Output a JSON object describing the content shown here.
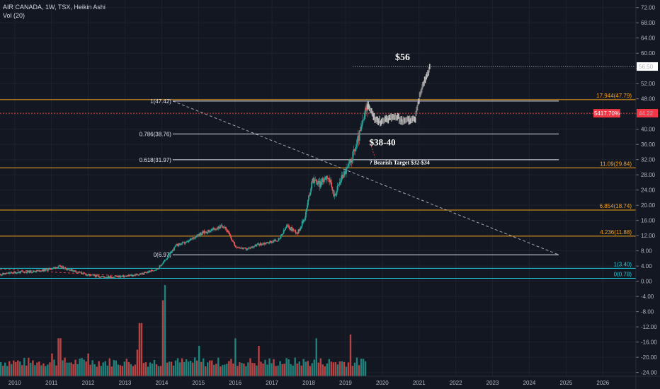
{
  "legend": {
    "symbol_line": "AIR CANADA, 1W, TSX, Heikin Ashi",
    "volume_line": "Vol (20)"
  },
  "colors": {
    "background": "#131722",
    "bull": "#26a69a",
    "bear": "#ef5350",
    "fib": "#f7a21b",
    "white": "#e0e3eb",
    "cyan": "#22c9d6",
    "red_dotted": "#e23d3d",
    "projection": "#9e9e9e",
    "price_tag_bg": "#f23645"
  },
  "chart_data": {
    "type": "line",
    "title": "AIR CANADA, 1W, TSX, Heikin Ashi",
    "xlabel": "",
    "ylabel": "",
    "x_ticks": [
      "2010",
      "2011",
      "2012",
      "2013",
      "2014",
      "2015",
      "2016",
      "2017",
      "2018",
      "2019",
      "2020",
      "2021",
      "2022",
      "2023",
      "2024",
      "2025",
      "2026"
    ],
    "y_ticks": [
      "72.00",
      "68.00",
      "64.00",
      "60.00",
      "56.00",
      "52.00",
      "48.00",
      "44.00",
      "40.00",
      "36.00",
      "32.00",
      "28.00",
      "24.00",
      "20.00",
      "16.00",
      "12.00",
      "8.00",
      "4.00",
      "0.00",
      "-4.00",
      "-8.00",
      "-12.00",
      "-16.00",
      "-20.00",
      "-24.00"
    ],
    "ylim": [
      -25,
      74
    ],
    "xlim": [
      2009.6,
      2026.9
    ],
    "price_series": {
      "name": "Heikin Ashi",
      "x": [
        2009.6,
        2010.0,
        2010.5,
        2010.9,
        2011.2,
        2011.6,
        2012.0,
        2012.5,
        2013.0,
        2013.5,
        2013.9,
        2014.1,
        2014.4,
        2014.7,
        2015.0,
        2015.4,
        2015.7,
        2016.0,
        2016.3,
        2016.6,
        2016.9,
        2017.2,
        2017.4,
        2017.7,
        2017.9,
        2018.1,
        2018.3,
        2018.5,
        2018.7,
        2018.9,
        2019.1,
        2019.3,
        2019.45,
        2019.6
      ],
      "y": [
        1.8,
        2.3,
        2.6,
        3.1,
        3.9,
        2.8,
        1.6,
        1.1,
        1.3,
        2.0,
        3.4,
        5.6,
        9.5,
        10.3,
        12.4,
        13.6,
        14.7,
        9.2,
        8.4,
        9.6,
        10.2,
        11.0,
        14.5,
        12.8,
        17.0,
        27.0,
        25.5,
        28.0,
        22.5,
        27.5,
        30.5,
        36.0,
        41.0,
        46.5
      ]
    },
    "projection": {
      "name": "",
      "x": [
        2019.6,
        2019.8,
        2020.0,
        2020.3,
        2020.6,
        2020.9,
        2021.0,
        2021.1,
        2021.2,
        2021.3
      ],
      "y": [
        46.5,
        42.5,
        42.0,
        43.5,
        42.0,
        43.0,
        48.0,
        52.0,
        54.0,
        56.5
      ]
    },
    "volume": {
      "name": "Vol (20)",
      "x_start": 2009.6,
      "x_end": 2019.55,
      "step": 0.058,
      "y_min": -25,
      "peaks": [
        [
          2011.0,
          -19
        ],
        [
          2011.2,
          -15
        ],
        [
          2012.0,
          -19
        ],
        [
          2013.3,
          -18
        ],
        [
          2013.4,
          -11
        ],
        [
          2014.0,
          -5
        ],
        [
          2014.05,
          -1
        ],
        [
          2015.0,
          -17
        ],
        [
          2016.0,
          -15
        ],
        [
          2016.6,
          -17
        ],
        [
          2018.2,
          -15
        ],
        [
          2019.1,
          -14
        ]
      ]
    },
    "levels": [
      {
        "label": "17.944(47.79)",
        "y": 47.79,
        "color": "fib",
        "side": "right",
        "x_from": 2009.6
      },
      {
        "label": "5417.70%",
        "y": 44.2,
        "color": "red_dotted",
        "side": "tag",
        "x_from": 2009.6
      },
      {
        "label": "0.786(38.76)",
        "y": 38.76,
        "color": "white",
        "side": "left",
        "x_from": 2014.3,
        "x_to": 2024.8
      },
      {
        "label": "0.618(31.97)",
        "y": 31.97,
        "color": "white",
        "side": "left",
        "x_from": 2014.3,
        "x_to": 2024.8
      },
      {
        "label": "11.09(29.84)",
        "y": 29.84,
        "color": "fib",
        "side": "right",
        "x_from": 2009.6
      },
      {
        "label": "6.854(18.74)",
        "y": 18.74,
        "color": "fib",
        "side": "right",
        "x_from": 2009.6
      },
      {
        "label": "4.236(11.88)",
        "y": 11.88,
        "color": "fib",
        "side": "right",
        "x_from": 2009.6
      },
      {
        "label": "0(6.97)",
        "y": 6.97,
        "color": "white",
        "side": "left",
        "x_from": 2014.3,
        "x_to": 2024.8
      },
      {
        "label": "1(3.40)",
        "y": 3.4,
        "color": "cyan",
        "side": "right",
        "x_from": 2009.6
      },
      {
        "label": "0(0.78)",
        "y": 0.78,
        "color": "cyan",
        "side": "right",
        "x_from": 2009.6
      }
    ],
    "top_level": {
      "label": "1(47.42)",
      "y": 47.42,
      "x_from": 2014.3
    },
    "target_line": {
      "label": "56.50",
      "y": 56.5,
      "x_from": 2019.2
    },
    "right_tags": [
      {
        "text": "56.50",
        "y": 56.5,
        "style": "white"
      },
      {
        "text": "44.22",
        "y": 44.22,
        "style": "red"
      }
    ],
    "trendline": {
      "x1": 2014.3,
      "y1": 47.42,
      "x2": 2024.8,
      "y2": 6.97
    },
    "annotations": [
      {
        "text": "$56",
        "x": 2020.35,
        "y": 58.2,
        "size": 14
      },
      {
        "text": "$38-40",
        "x": 2019.65,
        "y": 35.8,
        "size": 13
      },
      {
        "text": "? Bearish Target $32-$34",
        "x": 2019.65,
        "y": 30.7,
        "size": 8
      }
    ]
  }
}
